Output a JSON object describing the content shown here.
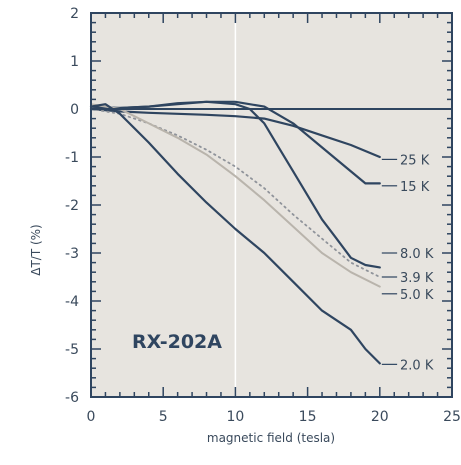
{
  "chart_data": {
    "type": "line",
    "xlabel": "magnetic field (tesla)",
    "ylabel": "ΔT/T (%)",
    "xlim": [
      0,
      25
    ],
    "ylim": [
      -6,
      2
    ],
    "x_ticks": [
      "0",
      "5",
      "10",
      "15",
      "20",
      "25"
    ],
    "y_ticks": [
      "2",
      "1",
      "0",
      "-1",
      "-2",
      "-3",
      "-4",
      "-5",
      "-6"
    ],
    "grid": true,
    "annotation": "RX-202A",
    "colors": {
      "background": "#e7e4df",
      "frame": "#2f4560",
      "grid": "#ffffff",
      "dark_series": "#2f4560",
      "light_series": "#b9b4ac",
      "dotted_series": "#8f939a"
    },
    "series": [
      {
        "name": "25 K",
        "style": "solid-dark",
        "points": [
          [
            0,
            0.0
          ],
          [
            2,
            -0.05
          ],
          [
            4,
            -0.08
          ],
          [
            6,
            -0.1
          ],
          [
            8,
            -0.12
          ],
          [
            10,
            -0.15
          ],
          [
            12,
            -0.2
          ],
          [
            14,
            -0.35
          ],
          [
            16,
            -0.55
          ],
          [
            18,
            -0.75
          ],
          [
            20,
            -1.0
          ]
        ]
      },
      {
        "name": "15 K",
        "style": "solid-dark",
        "points": [
          [
            0,
            0.0
          ],
          [
            2,
            0.02
          ],
          [
            4,
            0.05
          ],
          [
            6,
            0.1
          ],
          [
            8,
            0.15
          ],
          [
            10,
            0.15
          ],
          [
            12,
            0.05
          ],
          [
            14,
            -0.3
          ],
          [
            16,
            -0.8
          ],
          [
            18,
            -1.3
          ],
          [
            19,
            -1.55
          ],
          [
            20,
            -1.55
          ]
        ]
      },
      {
        "name": "8.0 K",
        "style": "solid-dark",
        "points": [
          [
            0,
            0.05
          ],
          [
            2,
            0.02
          ],
          [
            4,
            0.05
          ],
          [
            6,
            0.12
          ],
          [
            8,
            0.15
          ],
          [
            10,
            0.1
          ],
          [
            11,
            0.0
          ],
          [
            12,
            -0.3
          ],
          [
            13,
            -0.8
          ],
          [
            14,
            -1.3
          ],
          [
            15,
            -1.8
          ],
          [
            16,
            -2.3
          ],
          [
            17,
            -2.7
          ],
          [
            18,
            -3.1
          ],
          [
            19,
            -3.25
          ],
          [
            20,
            -3.3
          ]
        ]
      },
      {
        "name": "3.9 K",
        "style": "dotted",
        "points": [
          [
            0,
            0.0
          ],
          [
            2,
            -0.1
          ],
          [
            4,
            -0.3
          ],
          [
            6,
            -0.55
          ],
          [
            8,
            -0.85
          ],
          [
            10,
            -1.2
          ],
          [
            12,
            -1.65
          ],
          [
            14,
            -2.2
          ],
          [
            16,
            -2.7
          ],
          [
            18,
            -3.2
          ],
          [
            20,
            -3.5
          ]
        ]
      },
      {
        "name": "5.0 K",
        "style": "solid-light",
        "points": [
          [
            0,
            0.1
          ],
          [
            2,
            0.0
          ],
          [
            4,
            -0.3
          ],
          [
            6,
            -0.6
          ],
          [
            8,
            -0.95
          ],
          [
            10,
            -1.4
          ],
          [
            12,
            -1.9
          ],
          [
            14,
            -2.45
          ],
          [
            16,
            -3.0
          ],
          [
            18,
            -3.4
          ],
          [
            20,
            -3.7
          ]
        ]
      },
      {
        "name": "2.0 K",
        "style": "solid-dark",
        "points": [
          [
            0,
            0.05
          ],
          [
            1,
            0.1
          ],
          [
            2,
            -0.1
          ],
          [
            4,
            -0.7
          ],
          [
            6,
            -1.35
          ],
          [
            8,
            -1.95
          ],
          [
            10,
            -2.5
          ],
          [
            12,
            -3.0
          ],
          [
            14,
            -3.6
          ],
          [
            16,
            -4.2
          ],
          [
            18,
            -4.6
          ],
          [
            19,
            -5.0
          ],
          [
            20,
            -5.3
          ]
        ]
      }
    ],
    "curve_labels": [
      {
        "text": "25 K",
        "x": 21.4,
        "y": -1.05
      },
      {
        "text": "15 K",
        "x": 21.4,
        "y": -1.6
      },
      {
        "text": "8.0 K",
        "x": 21.4,
        "y": -3.0
      },
      {
        "text": "3.9 K",
        "x": 21.4,
        "y": -3.5
      },
      {
        "text": "5.0 K",
        "x": 21.4,
        "y": -3.85
      },
      {
        "text": "2.0 K",
        "x": 21.4,
        "y": -5.32
      }
    ]
  }
}
